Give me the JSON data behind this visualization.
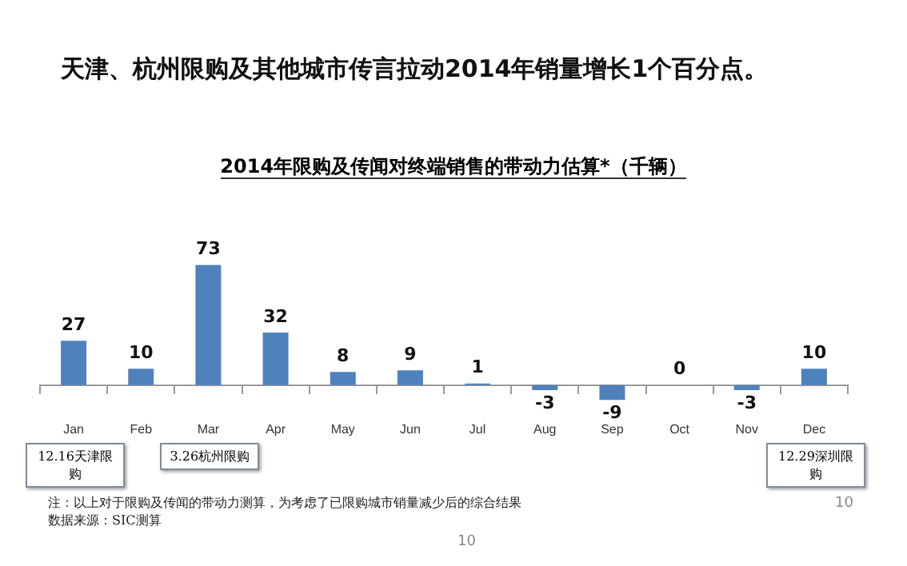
{
  "chart_data": {
    "type": "bar",
    "title": "天津、杭州限购及其他城市传言拉动2014年销量增长1个百分点。",
    "subtitle": "2014年限购及传闻对终端销售的带动力估算*（千辆）",
    "categories": [
      "Jan",
      "Feb",
      "Mar",
      "Apr",
      "May",
      "Jun",
      "Jul",
      "Aug",
      "Sep",
      "Oct",
      "Nov",
      "Dec"
    ],
    "values": [
      27,
      10,
      73,
      32,
      8,
      9,
      1,
      -3,
      -9,
      0,
      -3,
      10
    ],
    "color": "#4f81bd",
    "data_labels": true,
    "grid": false,
    "legend": false,
    "tick_labels": "x",
    "annotations": [
      "12.16天津限购",
      "3.26杭州限购",
      "12.29深圳限购",
      "注：以上对于限购及传闻的带动力测算，为考虑了已限购城市销量减少后的综合结果",
      "数据来源：SIC测算",
      "10",
      "10"
    ]
  }
}
